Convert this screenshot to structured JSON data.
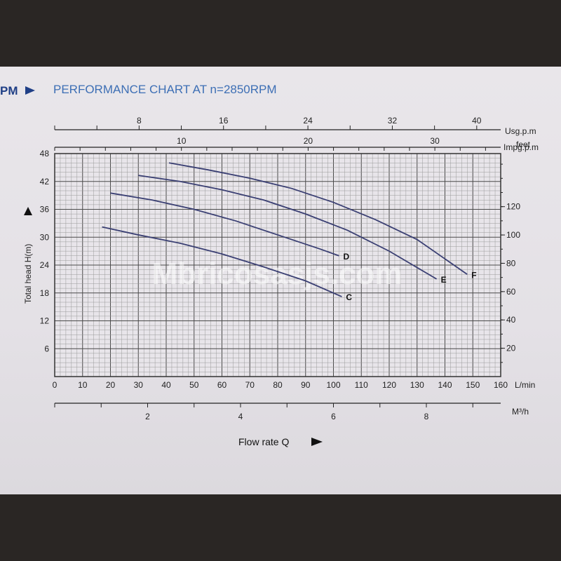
{
  "header": {
    "prefix": "PM",
    "title": "PERFORMANCE CHART AT n=2850RPM"
  },
  "watermark": "Mbricosasjs.com",
  "colors": {
    "curve": "#3a3f73",
    "grid_minor": "#9a9a9a",
    "grid_major": "#4a4a4a",
    "header": "#3d6fb5",
    "paper": "#e6e3e8"
  },
  "chart_data": {
    "type": "line",
    "title": "PERFORMANCE CHART AT n=2850RPM",
    "xlabel": "Flow rate Q",
    "ylabel": "Total head H(m)",
    "xlim": [
      0,
      160
    ],
    "ylim": [
      0,
      48
    ],
    "grid": true,
    "x_unit": "L/min",
    "x_ticks": [
      0,
      10,
      20,
      30,
      40,
      50,
      60,
      70,
      80,
      90,
      100,
      110,
      120,
      130,
      140,
      150,
      160
    ],
    "y_ticks": [
      6,
      12,
      18,
      24,
      30,
      36,
      42,
      48
    ],
    "secondary_axes": {
      "usgpm": {
        "unit": "Usg.p.m",
        "ticks": [
          8,
          16,
          24,
          32,
          40
        ]
      },
      "impgpm": {
        "unit": "Impg.p.m",
        "ticks": [
          10,
          20,
          30
        ]
      },
      "feet": {
        "unit": "feet",
        "ticks": [
          20,
          40,
          60,
          80,
          100,
          120
        ]
      },
      "m3h": {
        "unit": "M³/h",
        "ticks": [
          2,
          4,
          6,
          8
        ]
      }
    },
    "series": [
      {
        "name": "C",
        "x": [
          17,
          30,
          45,
          60,
          75,
          90,
          103
        ],
        "y": [
          32.2,
          30.5,
          28.7,
          26.4,
          23.6,
          20.6,
          17.2
        ]
      },
      {
        "name": "D",
        "x": [
          20,
          35,
          50,
          65,
          80,
          95,
          102
        ],
        "y": [
          39.5,
          38,
          36,
          33.5,
          30.5,
          27.5,
          26
        ]
      },
      {
        "name": "E",
        "x": [
          30,
          45,
          60,
          75,
          90,
          105,
          120,
          137
        ],
        "y": [
          43.3,
          42,
          40.2,
          38,
          35,
          31.5,
          27,
          21
        ]
      },
      {
        "name": "F",
        "x": [
          41,
          55,
          70,
          85,
          100,
          115,
          130,
          148
        ],
        "y": [
          46,
          44.5,
          42.7,
          40.5,
          37.5,
          33.8,
          29.5,
          22
        ]
      }
    ]
  }
}
